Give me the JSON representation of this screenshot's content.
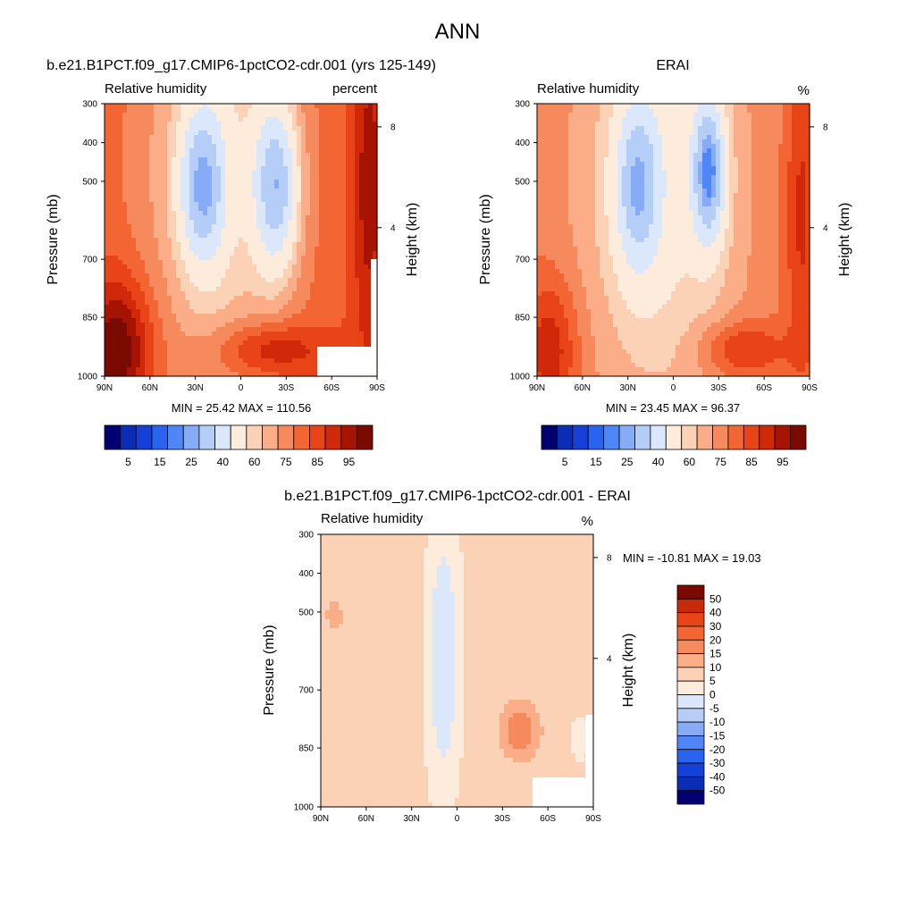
{
  "figure": {
    "title": "ANN"
  },
  "colors": {
    "rh_levels": [
      "#020070",
      "#0a2db5",
      "#1440d8",
      "#2a63f0",
      "#4f86f7",
      "#86acf8",
      "#b5cef8",
      "#dbe8fb",
      "#fdebdb",
      "#fcd2b6",
      "#fbad88",
      "#f78a5c",
      "#f36633",
      "#e84418",
      "#d02808",
      "#a61400",
      "#7a0a00"
    ],
    "diff_levels": [
      "#020070",
      "#0a2db5",
      "#1440d8",
      "#2a63f0",
      "#4f86f7",
      "#86acf8",
      "#b5cef8",
      "#dbe8fb",
      "#fdebdb",
      "#fcd2b6",
      "#fbad88",
      "#f78a5c",
      "#f36633",
      "#e84418",
      "#c62a08",
      "#7a0a00"
    ]
  },
  "chart_data": [
    {
      "type": "heatmap",
      "title": "b.e21.B1PCT.f09_g17.CMIP6-1pctCO2-cdr.001 (yrs 125-149)",
      "left_label": "Relative humidity",
      "right_label": "percent",
      "ylabel": "Pressure (mb)",
      "ylabel_right": "Height (km)",
      "x_ticks": [
        "90N",
        "60N",
        "30N",
        "0",
        "30S",
        "60S",
        "90S"
      ],
      "y_ticks": [
        "300",
        "400",
        "500",
        "700",
        "850",
        "1000"
      ],
      "y_ticks_right": [
        "8",
        "4"
      ],
      "stats": "MIN =  25.42  MAX = 110.56",
      "colorbar_labels": [
        "5",
        "15",
        "25",
        "40",
        "60",
        "75",
        "85",
        "95"
      ],
      "ylim": [
        1000,
        300
      ],
      "zrange": [
        25.42,
        110.56
      ],
      "seed": 0
    },
    {
      "type": "heatmap",
      "title": "ERAI",
      "left_label": "Relative humidity",
      "right_label": "%",
      "ylabel": "Pressure (mb)",
      "ylabel_right": "Height (km)",
      "x_ticks": [
        "90N",
        "60N",
        "30N",
        "0",
        "30S",
        "60S",
        "90S"
      ],
      "y_ticks": [
        "300",
        "400",
        "500",
        "700",
        "850",
        "1000"
      ],
      "y_ticks_right": [
        "8",
        "4"
      ],
      "stats": "MIN =  23.45  MAX =  96.37",
      "colorbar_labels": [
        "5",
        "15",
        "25",
        "40",
        "60",
        "75",
        "85",
        "95"
      ],
      "ylim": [
        1000,
        300
      ],
      "zrange": [
        23.45,
        96.37
      ],
      "seed": 1
    },
    {
      "type": "heatmap",
      "title": "b.e21.B1PCT.f09_g17.CMIP6-1pctCO2-cdr.001 - ERAI",
      "left_label": "Relative humidity",
      "right_label": "%",
      "ylabel": "Pressure (mb)",
      "ylabel_right": "Height (km)",
      "x_ticks": [
        "90N",
        "60N",
        "30N",
        "0",
        "30S",
        "60S",
        "90S"
      ],
      "y_ticks": [
        "300",
        "400",
        "500",
        "700",
        "850",
        "1000"
      ],
      "y_ticks_right": [
        "8",
        "4"
      ],
      "stats": "MIN = -10.81  MAX =  19.03",
      "colorbar_labels": [
        "50",
        "40",
        "30",
        "20",
        "15",
        "10",
        "5",
        "0",
        "-5",
        "-10",
        "-15",
        "-20",
        "-30",
        "-40",
        "-50"
      ],
      "ylim": [
        1000,
        300
      ],
      "zrange": [
        -10.81,
        19.03
      ],
      "seed": 2
    }
  ]
}
